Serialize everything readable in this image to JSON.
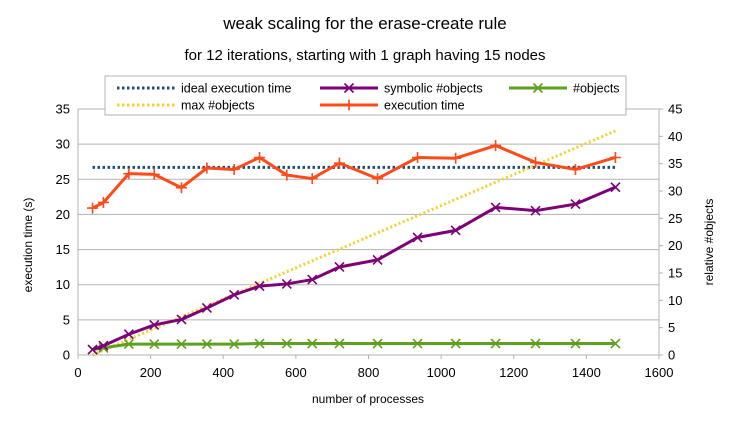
{
  "chart_data": {
    "type": "line",
    "title": "weak scaling for the erase-create rule",
    "subtitle": "for 12 iterations, starting with 1 graph having 15 nodes",
    "xlabel": "number of processes",
    "ylabel": "execution time (s)",
    "y2label": "relative #objects",
    "xlim": [
      0,
      1600
    ],
    "xticks": [
      "0",
      "200",
      "400",
      "600",
      "800",
      "1000",
      "1200",
      "1400",
      "1600"
    ],
    "ylim": [
      0,
      35
    ],
    "yticks": [
      "0",
      "5",
      "10",
      "15",
      "20",
      "25",
      "30",
      "35"
    ],
    "y2lim": [
      0,
      45
    ],
    "y2ticks": [
      "0",
      "5",
      "10",
      "15",
      "20",
      "25",
      "30",
      "35",
      "40",
      "45"
    ],
    "grid": "horizontal",
    "legend_position": "top",
    "series": [
      {
        "name": "ideal execution time",
        "axis": "left",
        "style": "dotted",
        "color": "#1f4e79",
        "marker": "none",
        "x": [
          40,
          1480
        ],
        "y": [
          26.7,
          26.7
        ]
      },
      {
        "name": "symbolic #objects",
        "axis": "right",
        "style": "solid",
        "color": "#7e0079",
        "marker": "x",
        "x": [
          40,
          70,
          140,
          210,
          285,
          355,
          430,
          500,
          575,
          645,
          720,
          825,
          935,
          1040,
          1150,
          1260,
          1370,
          1480
        ],
        "y": [
          1,
          1.7,
          3.8,
          5.5,
          6.5,
          8.6,
          11,
          12.6,
          13,
          13.8,
          16.1,
          17.4,
          21.5,
          22.8,
          27,
          26.4,
          27.6,
          30.7
        ]
      },
      {
        "name": "#objects",
        "axis": "right",
        "style": "solid",
        "color": "#5ea01f",
        "marker": "x",
        "x": [
          40,
          70,
          140,
          210,
          285,
          355,
          430,
          500,
          575,
          645,
          720,
          825,
          935,
          1040,
          1150,
          1260,
          1370,
          1480
        ],
        "y": [
          1,
          1.3,
          2,
          2,
          2,
          2,
          2,
          2.1,
          2.1,
          2.1,
          2.1,
          2.1,
          2.1,
          2.1,
          2.1,
          2.1,
          2.1,
          2.1
        ]
      },
      {
        "name": "max #objects",
        "axis": "right",
        "style": "dotted",
        "color": "#f2d22b",
        "marker": "none",
        "x": [
          40,
          1480
        ],
        "y": [
          0,
          41
        ]
      },
      {
        "name": "execution time",
        "axis": "left",
        "style": "solid",
        "color": "#ff4a1a",
        "marker": "+",
        "x": [
          40,
          70,
          140,
          210,
          285,
          355,
          430,
          500,
          575,
          645,
          720,
          825,
          935,
          1040,
          1150,
          1260,
          1370,
          1480
        ],
        "y": [
          20.9,
          21.7,
          25.8,
          25.7,
          23.8,
          26.6,
          26.4,
          28.1,
          25.6,
          25.1,
          27.3,
          25.1,
          28.1,
          28,
          29.8,
          27.4,
          26.4,
          28.1
        ]
      }
    ]
  }
}
